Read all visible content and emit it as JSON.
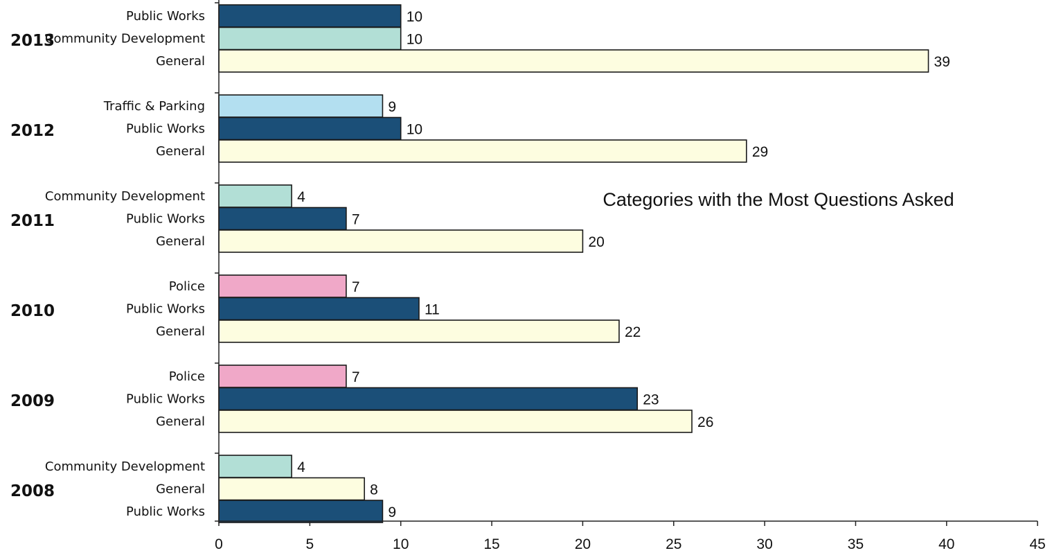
{
  "chart_data": {
    "type": "bar",
    "orientation": "horizontal",
    "title": "Categories with the Most Questions Asked",
    "xlabel": "",
    "ylabel": "",
    "xlim": [
      0,
      45
    ],
    "xticks": [
      0,
      5,
      10,
      15,
      20,
      25,
      30,
      35,
      40,
      45
    ],
    "grid": false,
    "groups": [
      {
        "year": "2013",
        "bars": [
          {
            "category": "Public Works",
            "value": 10
          },
          {
            "category": "Community Development",
            "value": 10
          },
          {
            "category": "General",
            "value": 39
          }
        ]
      },
      {
        "year": "2012",
        "bars": [
          {
            "category": "Traffic & Parking",
            "value": 9
          },
          {
            "category": "Public Works",
            "value": 10
          },
          {
            "category": "General",
            "value": 29
          }
        ]
      },
      {
        "year": "2011",
        "bars": [
          {
            "category": "Community Development",
            "value": 4
          },
          {
            "category": "Public Works",
            "value": 7
          },
          {
            "category": "General",
            "value": 20
          }
        ]
      },
      {
        "year": "2010",
        "bars": [
          {
            "category": "Police",
            "value": 7
          },
          {
            "category": "Public Works",
            "value": 11
          },
          {
            "category": "General",
            "value": 22
          }
        ]
      },
      {
        "year": "2009",
        "bars": [
          {
            "category": "Police",
            "value": 7
          },
          {
            "category": "Public Works",
            "value": 23
          },
          {
            "category": "General",
            "value": 26
          }
        ]
      },
      {
        "year": "2008",
        "bars": [
          {
            "category": "Community Development",
            "value": 4
          },
          {
            "category": "General",
            "value": 8
          },
          {
            "category": "Public Works",
            "value": 9
          }
        ]
      }
    ],
    "category_colors": {
      "Public Works": "#1b4f78",
      "Community Development": "#b2dfd6",
      "General": "#fdfde0",
      "Traffic & Parking": "#b3dff0",
      "Police": "#f0a8c8"
    }
  }
}
